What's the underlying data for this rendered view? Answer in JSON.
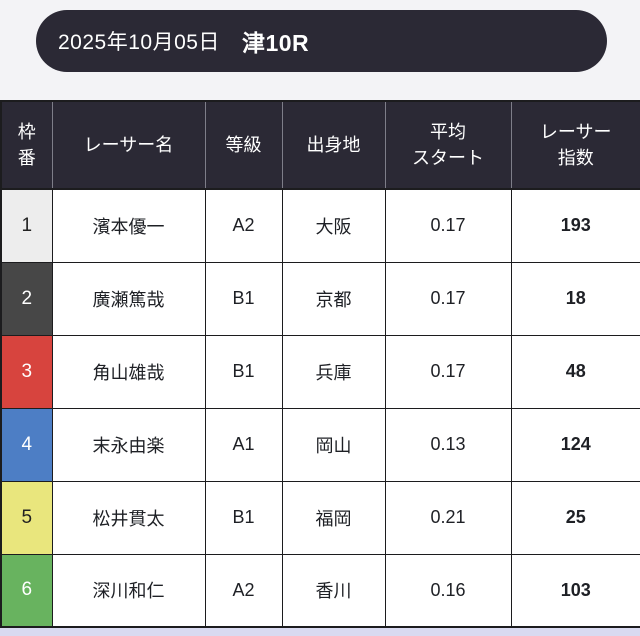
{
  "page": {
    "background_color": "#f3f3f6",
    "footer_strip_color": "#d9daf1"
  },
  "header": {
    "date": "2025年10月05日",
    "race": "津10R",
    "bg_color": "#2b2935",
    "text_color": "#ffffff"
  },
  "table": {
    "header_bg_color": "#2b2935",
    "header_text_color": "#ffffff",
    "columns": [
      {
        "key": "frame",
        "label": "枠\n番"
      },
      {
        "key": "name",
        "label": "レーサー名"
      },
      {
        "key": "grade",
        "label": "等級"
      },
      {
        "key": "origin",
        "label": "出身地"
      },
      {
        "key": "avg_start",
        "label": "平均\nスタート"
      },
      {
        "key": "racer_index",
        "label": "レーサー\n指数"
      }
    ],
    "rows": [
      {
        "frame": "1",
        "name": "濱本優一",
        "grade": "A2",
        "origin": "大阪",
        "avg_start": "0.17",
        "racer_index": "193",
        "frame_bg": "#ededed",
        "frame_text": "#222222"
      },
      {
        "frame": "2",
        "name": "廣瀬篤哉",
        "grade": "B1",
        "origin": "京都",
        "avg_start": "0.17",
        "racer_index": "18",
        "frame_bg": "#474747",
        "frame_text": "#ffffff"
      },
      {
        "frame": "3",
        "name": "角山雄哉",
        "grade": "B1",
        "origin": "兵庫",
        "avg_start": "0.17",
        "racer_index": "48",
        "frame_bg": "#d7443e",
        "frame_text": "#ffffff"
      },
      {
        "frame": "4",
        "name": "末永由楽",
        "grade": "A1",
        "origin": "岡山",
        "avg_start": "0.13",
        "racer_index": "124",
        "frame_bg": "#4d7ec5",
        "frame_text": "#ffffff"
      },
      {
        "frame": "5",
        "name": "松井貫太",
        "grade": "B1",
        "origin": "福岡",
        "avg_start": "0.21",
        "racer_index": "25",
        "frame_bg": "#e9e67d",
        "frame_text": "#222222"
      },
      {
        "frame": "6",
        "name": "深川和仁",
        "grade": "A2",
        "origin": "香川",
        "avg_start": "0.16",
        "racer_index": "103",
        "frame_bg": "#68b35f",
        "frame_text": "#ffffff"
      }
    ]
  }
}
